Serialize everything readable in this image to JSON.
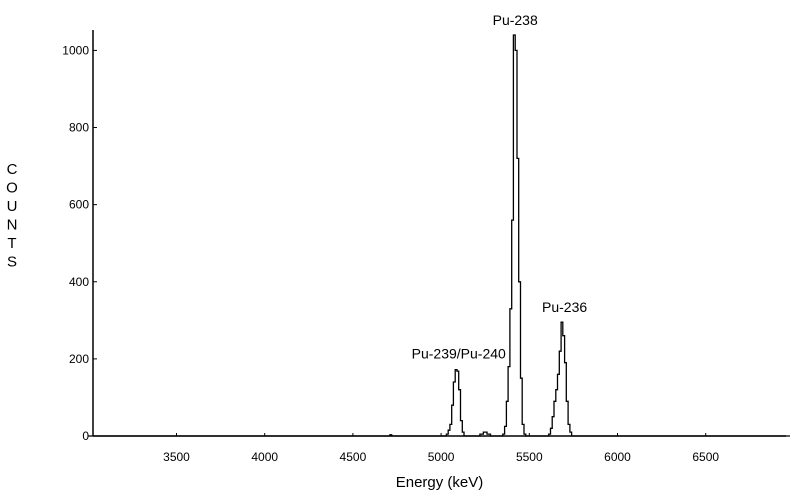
{
  "chart_data": {
    "type": "line",
    "title": "",
    "xlabel": "Energy (keV)",
    "ylabel": "COUNTS",
    "xlim": [
      3000,
      7000
    ],
    "ylim": [
      0,
      1050
    ],
    "x_ticks": [
      3500,
      4000,
      4500,
      5000,
      5500,
      6000,
      6500
    ],
    "y_ticks": [
      0,
      200,
      400,
      600,
      800,
      1000
    ],
    "grid": false,
    "legend": "none",
    "annotations": [
      {
        "text": "Pu-238",
        "x": 5420,
        "y": 1040
      },
      {
        "text": "Pu-236",
        "x": 5700,
        "y": 295
      },
      {
        "text": "Pu-239/Pu-240",
        "x": 5100,
        "y": 175
      }
    ],
    "series": [
      {
        "x": [
          3000,
          4500,
          4700,
          4710,
          4720,
          5020,
          5030,
          5040,
          5050,
          5060,
          5070,
          5080,
          5090,
          5100,
          5110,
          5120,
          5130,
          5200,
          5220,
          5240,
          5260,
          5280,
          5300,
          5340,
          5350,
          5360,
          5370,
          5380,
          5390,
          5400,
          5410,
          5420,
          5430,
          5440,
          5450,
          5460,
          5470,
          5480,
          5600,
          5610,
          5620,
          5630,
          5640,
          5650,
          5660,
          5670,
          5680,
          5690,
          5700,
          5710,
          5720,
          5730,
          5740,
          7000
        ],
        "values": [
          0,
          0,
          0,
          3,
          0,
          0,
          5,
          15,
          30,
          80,
          140,
          172,
          168,
          120,
          40,
          10,
          0,
          0,
          5,
          10,
          5,
          0,
          0,
          0,
          5,
          25,
          90,
          180,
          330,
          560,
          1040,
          1000,
          720,
          400,
          150,
          30,
          5,
          0,
          0,
          5,
          20,
          50,
          90,
          120,
          160,
          220,
          295,
          260,
          190,
          90,
          30,
          10,
          0,
          0
        ]
      }
    ]
  }
}
